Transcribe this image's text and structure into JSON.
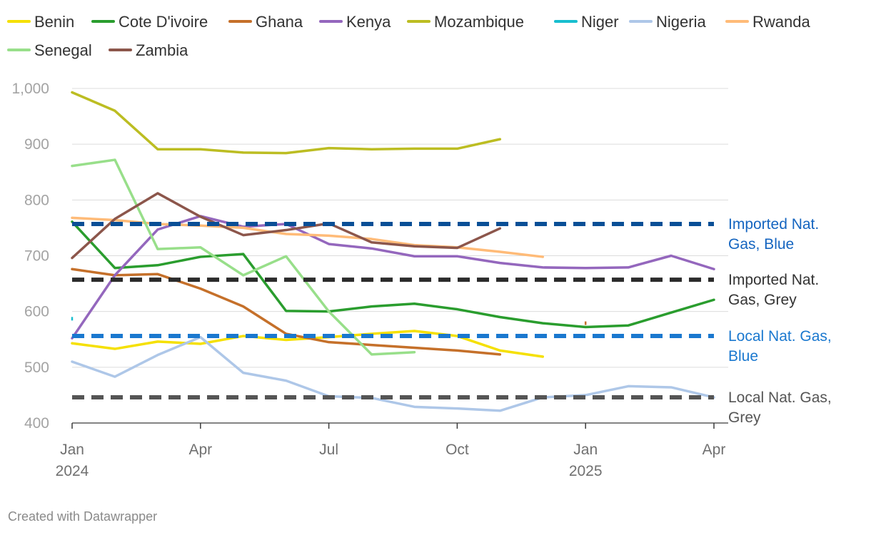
{
  "chart_data": {
    "type": "line",
    "title": "",
    "xlabel": "",
    "ylabel": "",
    "ylim": [
      400,
      1000
    ],
    "yticks": [
      400,
      500,
      600,
      700,
      800,
      900,
      1000
    ],
    "ytick_labels": [
      "400",
      "500",
      "600",
      "700",
      "800",
      "900",
      "1,000"
    ],
    "x_domain_months": [
      0,
      15
    ],
    "xticks": [
      {
        "month": 0,
        "label": "Jan",
        "sublabel": "2024"
      },
      {
        "month": 3,
        "label": "Apr",
        "sublabel": ""
      },
      {
        "month": 6,
        "label": "Jul",
        "sublabel": ""
      },
      {
        "month": 9,
        "label": "Oct",
        "sublabel": ""
      },
      {
        "month": 12,
        "label": "Jan",
        "sublabel": "2025"
      },
      {
        "month": 15,
        "label": "Apr",
        "sublabel": ""
      }
    ],
    "x_month_labels": [
      "2024-01",
      "2024-02",
      "2024-03",
      "2024-04",
      "2024-05",
      "2024-06",
      "2024-07",
      "2024-08",
      "2024-09",
      "2024-10",
      "2024-11",
      "2024-12",
      "2025-01",
      "2025-02",
      "2025-03",
      "2025-04"
    ],
    "legend_position": "top",
    "series": [
      {
        "name": "Benin",
        "color": "#f5e000",
        "values": [
          543,
          533,
          546,
          542,
          556,
          549,
          554,
          560,
          565,
          556,
          530,
          519,
          null,
          null,
          null,
          null
        ]
      },
      {
        "name": "Cote D'ivoire",
        "color": "#2a9d2e",
        "values": [
          761,
          678,
          683,
          698,
          703,
          601,
          600,
          609,
          614,
          604,
          590,
          579,
          572,
          575,
          598,
          621
        ]
      },
      {
        "name": "Ghana",
        "color": "#c5702a",
        "values": [
          676,
          665,
          667,
          641,
          609,
          560,
          545,
          540,
          535,
          530,
          523,
          null,
          579,
          null,
          null,
          null
        ]
      },
      {
        "name": "Kenya",
        "color": "#9467bd",
        "values": [
          552,
          665,
          747,
          771,
          752,
          757,
          721,
          713,
          699,
          699,
          687,
          679,
          678,
          679,
          700,
          676
        ]
      },
      {
        "name": "Mozambique",
        "color": "#bcbd22",
        "values": [
          993,
          960,
          891,
          891,
          885,
          884,
          893,
          891,
          892,
          892,
          909,
          null,
          null,
          null,
          null,
          null
        ]
      },
      {
        "name": "Niger",
        "color": "#17becf",
        "values": [
          587,
          null,
          null,
          null,
          null,
          null,
          null,
          null,
          null,
          null,
          null,
          null,
          null,
          null,
          null,
          null
        ]
      },
      {
        "name": "Nigeria",
        "color": "#aec7e8",
        "values": [
          510,
          483,
          522,
          554,
          490,
          476,
          448,
          445,
          429,
          426,
          422,
          446,
          450,
          466,
          464,
          446
        ]
      },
      {
        "name": "Rwanda",
        "color": "#ffbb78",
        "values": [
          768,
          764,
          757,
          754,
          750,
          739,
          736,
          730,
          719,
          715,
          707,
          698,
          null,
          null,
          null,
          null
        ]
      },
      {
        "name": "Senegal",
        "color": "#98df8a",
        "values": [
          861,
          872,
          712,
          715,
          665,
          699,
          600,
          523,
          527,
          null,
          null,
          null,
          null,
          null,
          null,
          null
        ]
      },
      {
        "name": "Zambia",
        "color": "#8c564b",
        "values": [
          696,
          766,
          812,
          770,
          737,
          746,
          758,
          724,
          717,
          714,
          749,
          null,
          null,
          null,
          null,
          null
        ]
      }
    ],
    "reference_lines": [
      {
        "name": "Imported Nat. Gas, Blue",
        "value": 757,
        "color": "#0a4f96",
        "label_lines": [
          "Imported Nat.",
          "Gas, Blue"
        ],
        "label_color": "#1565c0"
      },
      {
        "name": "Imported Nat. Gas, Grey",
        "value": 657,
        "color": "#2b2b2b",
        "label_lines": [
          "Imported Nat.",
          "Gas, Grey"
        ],
        "label_color": "#333333"
      },
      {
        "name": "Local Nat. Gas, Blue",
        "value": 556,
        "color": "#1a78cf",
        "label_lines": [
          "Local Nat. Gas,",
          "Blue"
        ],
        "label_color": "#1a78cf"
      },
      {
        "name": "Local Nat. Gas, Grey",
        "value": 446,
        "color": "#555555",
        "label_lines": [
          "Local Nat. Gas,",
          "Grey"
        ],
        "label_color": "#555555"
      }
    ]
  },
  "footer": {
    "credit": "Created with Datawrapper"
  }
}
